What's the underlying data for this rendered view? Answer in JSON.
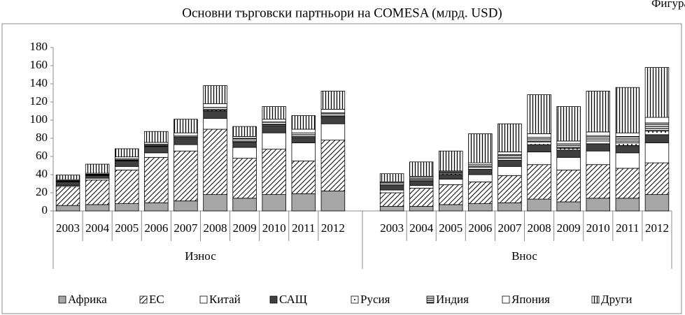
{
  "chart_data": {
    "type": "stacked_bar",
    "corner_note": "Фигура",
    "title": "Основни търговски партньори на COMESA (млрд. USD)",
    "categories": [
      "2003",
      "2004",
      "2005",
      "2006",
      "2007",
      "2008",
      "2009",
      "2010",
      "2011",
      "2012",
      null,
      "2003",
      "2004",
      "2005",
      "2006",
      "2007",
      "2008",
      "2009",
      "2010",
      "2011",
      "2012"
    ],
    "groups": [
      "Износ",
      "Внос"
    ],
    "ylim": [
      0,
      180
    ],
    "yticks": [
      0,
      20,
      40,
      60,
      80,
      100,
      120,
      140,
      160,
      180
    ],
    "legend": "bottom",
    "series": [
      {
        "name": "Африка",
        "color": "#a6a6a6",
        "values": [
          6,
          7,
          8,
          9,
          11,
          18,
          14,
          18,
          19,
          22,
          null,
          5,
          5,
          7,
          8,
          9,
          13,
          10,
          14,
          14,
          18
        ]
      },
      {
        "name": "ЕС",
        "color": "#ffffff",
        "values": [
          21,
          27,
          37,
          50,
          55,
          72,
          44,
          50,
          36,
          56,
          null,
          15,
          20,
          22,
          24,
          30,
          38,
          35,
          37,
          33,
          35
        ]
      },
      {
        "name": "Китай",
        "color": "#ffffff",
        "values": [
          1,
          2,
          4,
          5,
          7,
          12,
          12,
          18,
          20,
          18,
          null,
          3,
          3,
          6,
          8,
          10,
          14,
          14,
          15,
          17,
          22
        ]
      },
      {
        "name": "САЩ",
        "color": "#404040",
        "values": [
          4,
          3,
          6,
          7,
          7,
          8,
          6,
          8,
          6,
          7,
          null,
          5,
          5,
          5,
          6,
          7,
          8,
          8,
          8,
          8,
          9
        ]
      },
      {
        "name": "Русия",
        "color": "#ffffff",
        "values": [
          0.5,
          0.5,
          0.5,
          0.5,
          1,
          1,
          1,
          1,
          1,
          1,
          null,
          1,
          1,
          1,
          2,
          2,
          3,
          2,
          3,
          3,
          4
        ]
      },
      {
        "name": "Индия",
        "color": "#ffffff",
        "values": [
          1,
          1,
          2,
          2,
          2,
          3,
          3,
          3,
          4,
          4,
          null,
          2,
          3,
          2,
          3,
          4,
          5,
          5,
          6,
          7,
          9
        ]
      },
      {
        "name": "Япония",
        "color": "#ffffff",
        "values": [
          1,
          1,
          2,
          2,
          3,
          4,
          2,
          3,
          4,
          4,
          null,
          1,
          1,
          1,
          2,
          3,
          4,
          3,
          4,
          4,
          6
        ]
      },
      {
        "name": "Други",
        "color": "#ffffff",
        "values": [
          5,
          10,
          9,
          12,
          15,
          20,
          11,
          14,
          15,
          20,
          null,
          9,
          16,
          22,
          32,
          31,
          43,
          38,
          45,
          50,
          55
        ]
      }
    ]
  }
}
